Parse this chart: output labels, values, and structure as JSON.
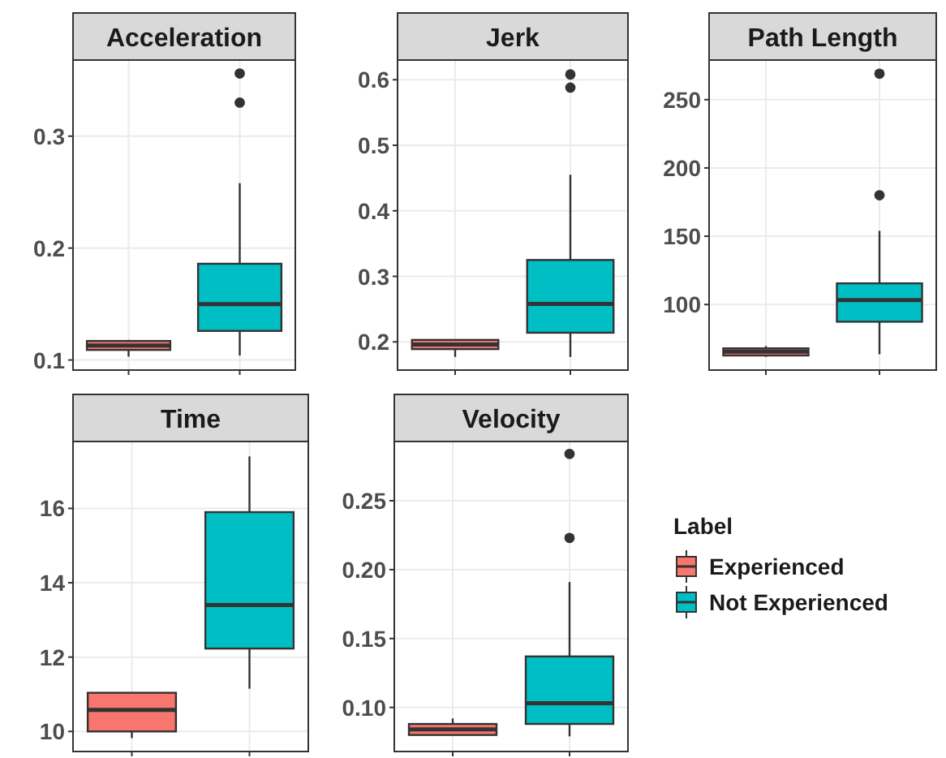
{
  "chart_data": [
    {
      "type": "box",
      "title": "Acceleration",
      "categories": [
        null,
        null
      ],
      "ylim": [
        0.091,
        0.368
      ],
      "yticks": [
        0.1,
        0.2,
        0.3
      ],
      "grid": true,
      "series": [
        {
          "color": "#f8766d",
          "boxes": [
            {
              "low": 0.103,
              "q1": 0.109,
              "median": 0.113,
              "q3": 0.117,
              "high": 0.118
            },
            null
          ]
        },
        {
          "color": "#00bfc4",
          "boxes": [
            null,
            {
              "low": 0.104,
              "q1": 0.126,
              "median": 0.15,
              "q3": 0.186,
              "high": 0.258,
              "outliers": [
                0.33,
                0.356
              ]
            }
          ]
        }
      ]
    },
    {
      "type": "box",
      "title": "Jerk",
      "categories": [
        null,
        null
      ],
      "ylim": [
        0.157,
        0.63
      ],
      "yticks": [
        0.2,
        0.3,
        0.4,
        0.5,
        0.6
      ],
      "grid": true,
      "series": [
        {
          "color": "#f8766d",
          "boxes": [
            {
              "low": 0.177,
              "q1": 0.189,
              "median": 0.196,
              "q3": 0.203,
              "high": 0.203
            },
            null
          ]
        },
        {
          "color": "#00bfc4",
          "boxes": [
            null,
            {
              "low": 0.177,
              "q1": 0.214,
              "median": 0.258,
              "q3": 0.325,
              "high": 0.455,
              "outliers": [
                0.588,
                0.608
              ]
            }
          ]
        }
      ]
    },
    {
      "type": "box",
      "title": "Path Length",
      "categories": [
        null,
        null
      ],
      "ylim": [
        52,
        279
      ],
      "yticks": [
        100,
        150,
        200,
        250
      ],
      "grid": true,
      "series": [
        {
          "color": "#f8766d",
          "boxes": [
            {
              "low": 61.7,
              "q1": 62.7,
              "median": 65.5,
              "q3": 67.9,
              "high": 69.6
            },
            null
          ]
        },
        {
          "color": "#00bfc4",
          "boxes": [
            null,
            {
              "low": 63.6,
              "q1": 87.4,
              "median": 103.2,
              "q3": 115.5,
              "high": 154,
              "outliers": [
                180,
                269
              ]
            }
          ]
        }
      ]
    },
    {
      "type": "box",
      "title": "Time",
      "categories": [
        null,
        null
      ],
      "ylim": [
        9.46,
        17.8
      ],
      "yticks": [
        10,
        12,
        14,
        16
      ],
      "grid": true,
      "series": [
        {
          "color": "#f8766d",
          "boxes": [
            {
              "low": 9.82,
              "q1": 10.0,
              "median": 10.58,
              "q3": 11.04,
              "high": 11.04
            },
            null
          ]
        },
        {
          "color": "#00bfc4",
          "boxes": [
            null,
            {
              "low": 11.15,
              "q1": 12.23,
              "median": 13.4,
              "q3": 15.9,
              "high": 17.4
            }
          ]
        }
      ]
    },
    {
      "type": "box",
      "title": "Velocity",
      "categories": [
        null,
        null
      ],
      "ylim": [
        0.068,
        0.293
      ],
      "yticks": [
        {
          "value": 0.1,
          "label": "0.10"
        },
        {
          "value": 0.15,
          "label": "0.15"
        },
        {
          "value": 0.2,
          "label": "0.20"
        },
        {
          "value": 0.25,
          "label": "0.25"
        }
      ],
      "grid": true,
      "legend": "right",
      "legend_title": "Label",
      "series": [
        {
          "name": "Experienced",
          "color": "#f8766d",
          "boxes": [
            {
              "low": 0.08,
              "q1": 0.08,
              "median": 0.084,
              "q3": 0.088,
              "high": 0.092
            },
            null
          ]
        },
        {
          "name": "Not Experienced",
          "color": "#00bfc4",
          "boxes": [
            null,
            {
              "low": 0.079,
              "q1": 0.088,
              "median": 0.103,
              "q3": 0.137,
              "high": 0.191,
              "outliers": [
                0.223,
                0.284
              ]
            }
          ]
        }
      ]
    }
  ]
}
